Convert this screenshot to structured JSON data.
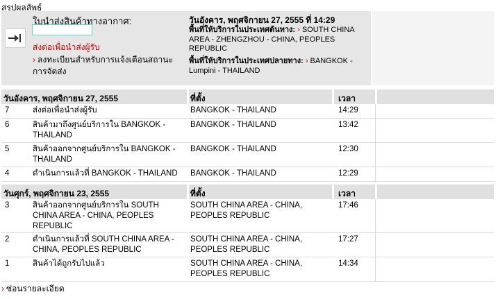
{
  "title": "สรุปผลลัพธ์",
  "summary": {
    "product_type": "ใบนำส่งสินค้าทางอากาศ:",
    "tracking_number": "",
    "status": "ส่งต่อเพื่อนำส่งผู้รับ",
    "notify_link": "ลงทะเบียนสำหรับการแจ้งเตือนสถานะการจัดส่ง",
    "ship_date": "วันอังคาร, พฤศจิกายน 27, 2555 ที่ 14:29",
    "origin_label": "พื้นที่ให้บริการในประเทศต้นทาง:",
    "origin_value": "SOUTH CHINA AREA - ZHENGZHOU - CHINA, PEOPLES REPUBLIC",
    "dest_label": "พื้นที่ให้บริการในประเทศปลายทาง:",
    "dest_value": "BANGKOK - Lumpini - THAILAND",
    "chevron": "›"
  },
  "columns": {
    "location": "ที่ตั้ง",
    "time": "เวลา"
  },
  "groups": [
    {
      "date": "วันอังคาร, พฤศจิกายน 27, 2555",
      "rows": [
        {
          "num": "7",
          "activity": "ส่งต่อเพื่อนำส่งผู้รับ",
          "location": "BANGKOK - THAILAND",
          "time": "14:29"
        },
        {
          "num": "6",
          "activity": "สินค้ามาถึงศูนย์บริการใน BANGKOK - THAILAND",
          "location": "BANGKOK - THAILAND",
          "time": "13:42"
        },
        {
          "num": "5",
          "activity": "สินค้าออกจากศูนย์บริการใน BANGKOK - THAILAND",
          "location": "BANGKOK - THAILAND",
          "time": "12:30"
        },
        {
          "num": "4",
          "activity": "ดำเนินการแล้วที่ BANGKOK - THAILAND",
          "location": "BANGKOK - THAILAND",
          "time": "12:29"
        }
      ]
    },
    {
      "date": "วันศุกร์, พฤศจิกายน 23, 2555",
      "rows": [
        {
          "num": "3",
          "activity": "สินค้าออกจากศูนย์บริการใน SOUTH CHINA AREA - CHINA, PEOPLES REPUBLIC",
          "location": "SOUTH CHINA AREA - CHINA, PEOPLES REPUBLIC",
          "time": "17:46"
        },
        {
          "num": "2",
          "activity": "ดำเนินการแล้วที่ SOUTH CHINA AREA - CHINA, PEOPLES REPUBLIC",
          "location": "SOUTH CHINA AREA - CHINA, PEOPLES REPUBLIC",
          "time": "17:27"
        },
        {
          "num": "1",
          "activity": "สินค้าได้ถูกรับไปแล้ว",
          "location": "SOUTH CHINA AREA - CHINA, PEOPLES REPUBLIC",
          "time": "14:34"
        }
      ]
    }
  ],
  "hide_details": "ซ่อนรายละเอียด",
  "icons": {
    "expand": "arrow-to-bar-icon"
  },
  "colors": {
    "accent": "#cc0000",
    "header_bg": "#e0e0e0",
    "summary_bg": "#e6e6e6"
  }
}
